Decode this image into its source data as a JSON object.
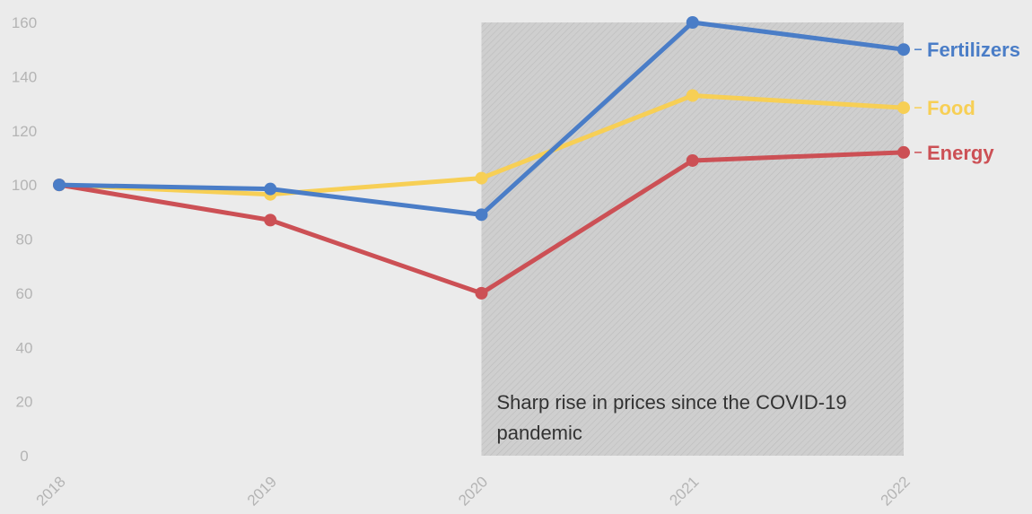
{
  "chart_data": {
    "type": "line",
    "x": [
      "2018",
      "2019",
      "2020",
      "2021",
      "2022"
    ],
    "ylim": [
      0,
      160
    ],
    "yticks": [
      "0",
      "20",
      "40",
      "60",
      "80",
      "100",
      "120",
      "140",
      "160"
    ],
    "grid": false,
    "series": [
      {
        "name": "Fertilizers",
        "values": [
          100,
          98.5,
          89,
          160,
          150
        ],
        "color": "#4a7dc7"
      },
      {
        "name": "Food",
        "values": [
          100,
          96.5,
          102.5,
          133,
          128.5
        ],
        "color": "#f7cf55"
      },
      {
        "name": "Energy",
        "values": [
          100,
          87,
          60,
          109,
          112
        ],
        "color": "#cc5055"
      }
    ],
    "highlight": {
      "x_from": "2020",
      "x_to": "2022",
      "fill": "#cfcfcf",
      "pattern": "diagonal-hatch",
      "text": [
        "Sharp rise in prices since the COVID-19",
        "pandemic"
      ]
    }
  }
}
